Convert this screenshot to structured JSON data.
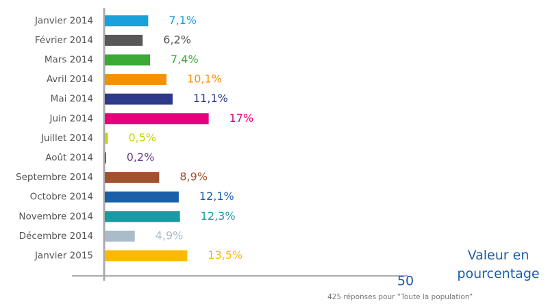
{
  "chart_data": {
    "type": "bar",
    "orientation": "horizontal",
    "categories": [
      "Janvier 2014",
      "Février 2014",
      "Mars 2014",
      "Avril 2014",
      "Mai 2014",
      "Juin 2014",
      "Juillet 2014",
      "Août 2014",
      "Septembre 2014",
      "Octobre 2014",
      "Novembre 2014",
      "Décembre 2014",
      "Janvier 2015"
    ],
    "values": [
      7.1,
      6.2,
      7.4,
      10.1,
      11.1,
      17,
      0.5,
      0.2,
      8.9,
      12.1,
      12.3,
      4.9,
      13.5
    ],
    "value_labels": [
      "7,1%",
      "6,2%",
      "7,4%",
      "10,1%",
      "11,1%",
      "17%",
      "0,5%",
      "0,2%",
      "8,9%",
      "12,1%",
      "12,3%",
      "4,9%",
      "13,5%"
    ],
    "colors": [
      "#1aa0dc",
      "#575757",
      "#3aaa35",
      "#f39200",
      "#2d3a8c",
      "#e5007e",
      "#c8d400",
      "#6b3d8f",
      "#a0522d",
      "#1b5fa8",
      "#1a9ba3",
      "#a9bcc8",
      "#fbba00"
    ],
    "xlim": [
      0,
      50
    ],
    "xticks": [
      50
    ],
    "xlabel": "Valeur en pourcentage",
    "note": "425 réponses pour “Toute la population”"
  }
}
